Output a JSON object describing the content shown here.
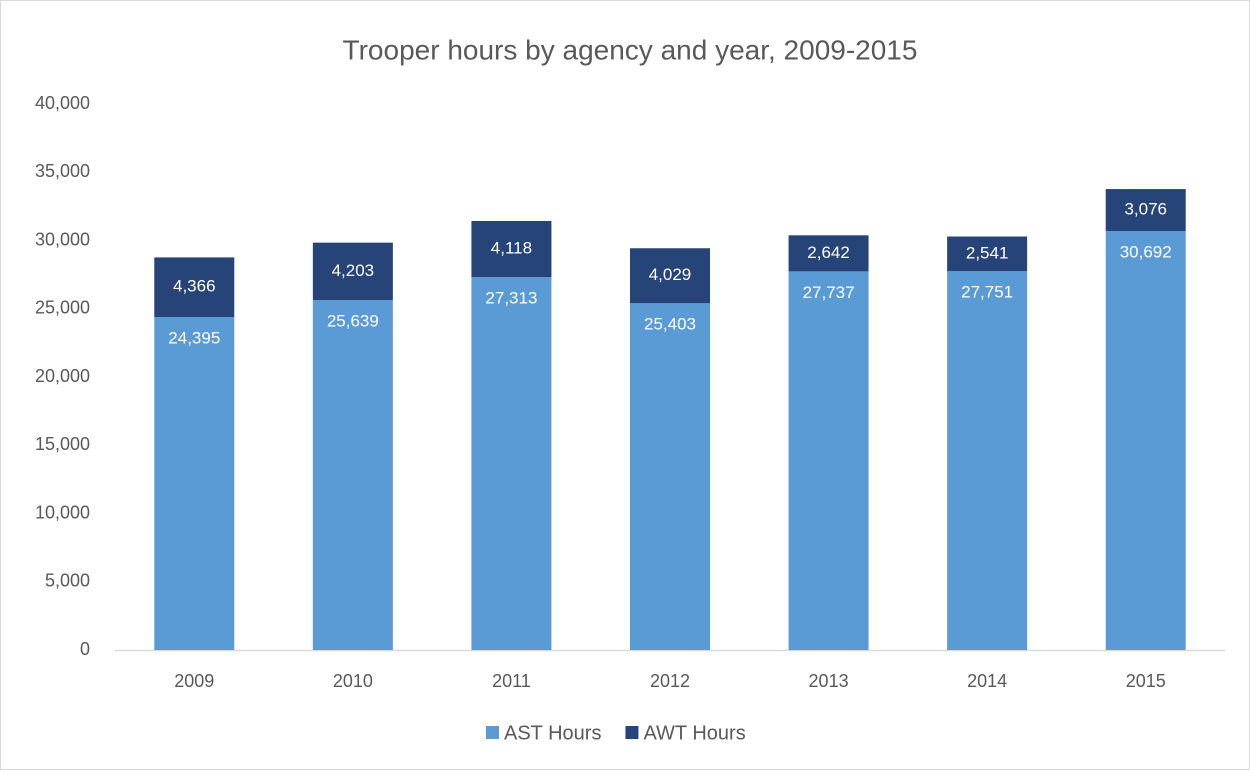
{
  "chart_data": {
    "type": "stacked-bar",
    "title": "Trooper hours by agency and year, 2009-2015",
    "categories": [
      "2009",
      "2010",
      "2011",
      "2012",
      "2013",
      "2014",
      "2015"
    ],
    "series": [
      {
        "name": "AST Hours",
        "color": "#5b9bd5",
        "values": [
          24395,
          25639,
          27313,
          25403,
          27737,
          27751,
          30692
        ],
        "value_labels": [
          "24,395",
          "25,639",
          "27,313",
          "25,403",
          "27,737",
          "27,751",
          "30,692"
        ]
      },
      {
        "name": "AWT Hours",
        "color": "#264478",
        "values": [
          4366,
          4203,
          4118,
          4029,
          2642,
          2541,
          3076
        ],
        "value_labels": [
          "4,366",
          "4,203",
          "4,118",
          "4,029",
          "2,642",
          "2,541",
          "3,076"
        ]
      }
    ],
    "ylim": [
      0,
      40000
    ],
    "yticks": [
      0,
      {
        "value": 5000,
        "label": "5,000"
      },
      {
        "value": 10000,
        "label": "10,000"
      },
      {
        "value": 15000,
        "label": "15,000"
      },
      {
        "value": 20000,
        "label": "20,000"
      },
      {
        "value": 25000,
        "label": "25,000"
      },
      {
        "value": 30000,
        "label": "30,000"
      },
      {
        "value": 35000,
        "label": "35,000"
      },
      {
        "value": 40000,
        "label": "40,000"
      }
    ],
    "grid": false,
    "legend": "bottom"
  }
}
